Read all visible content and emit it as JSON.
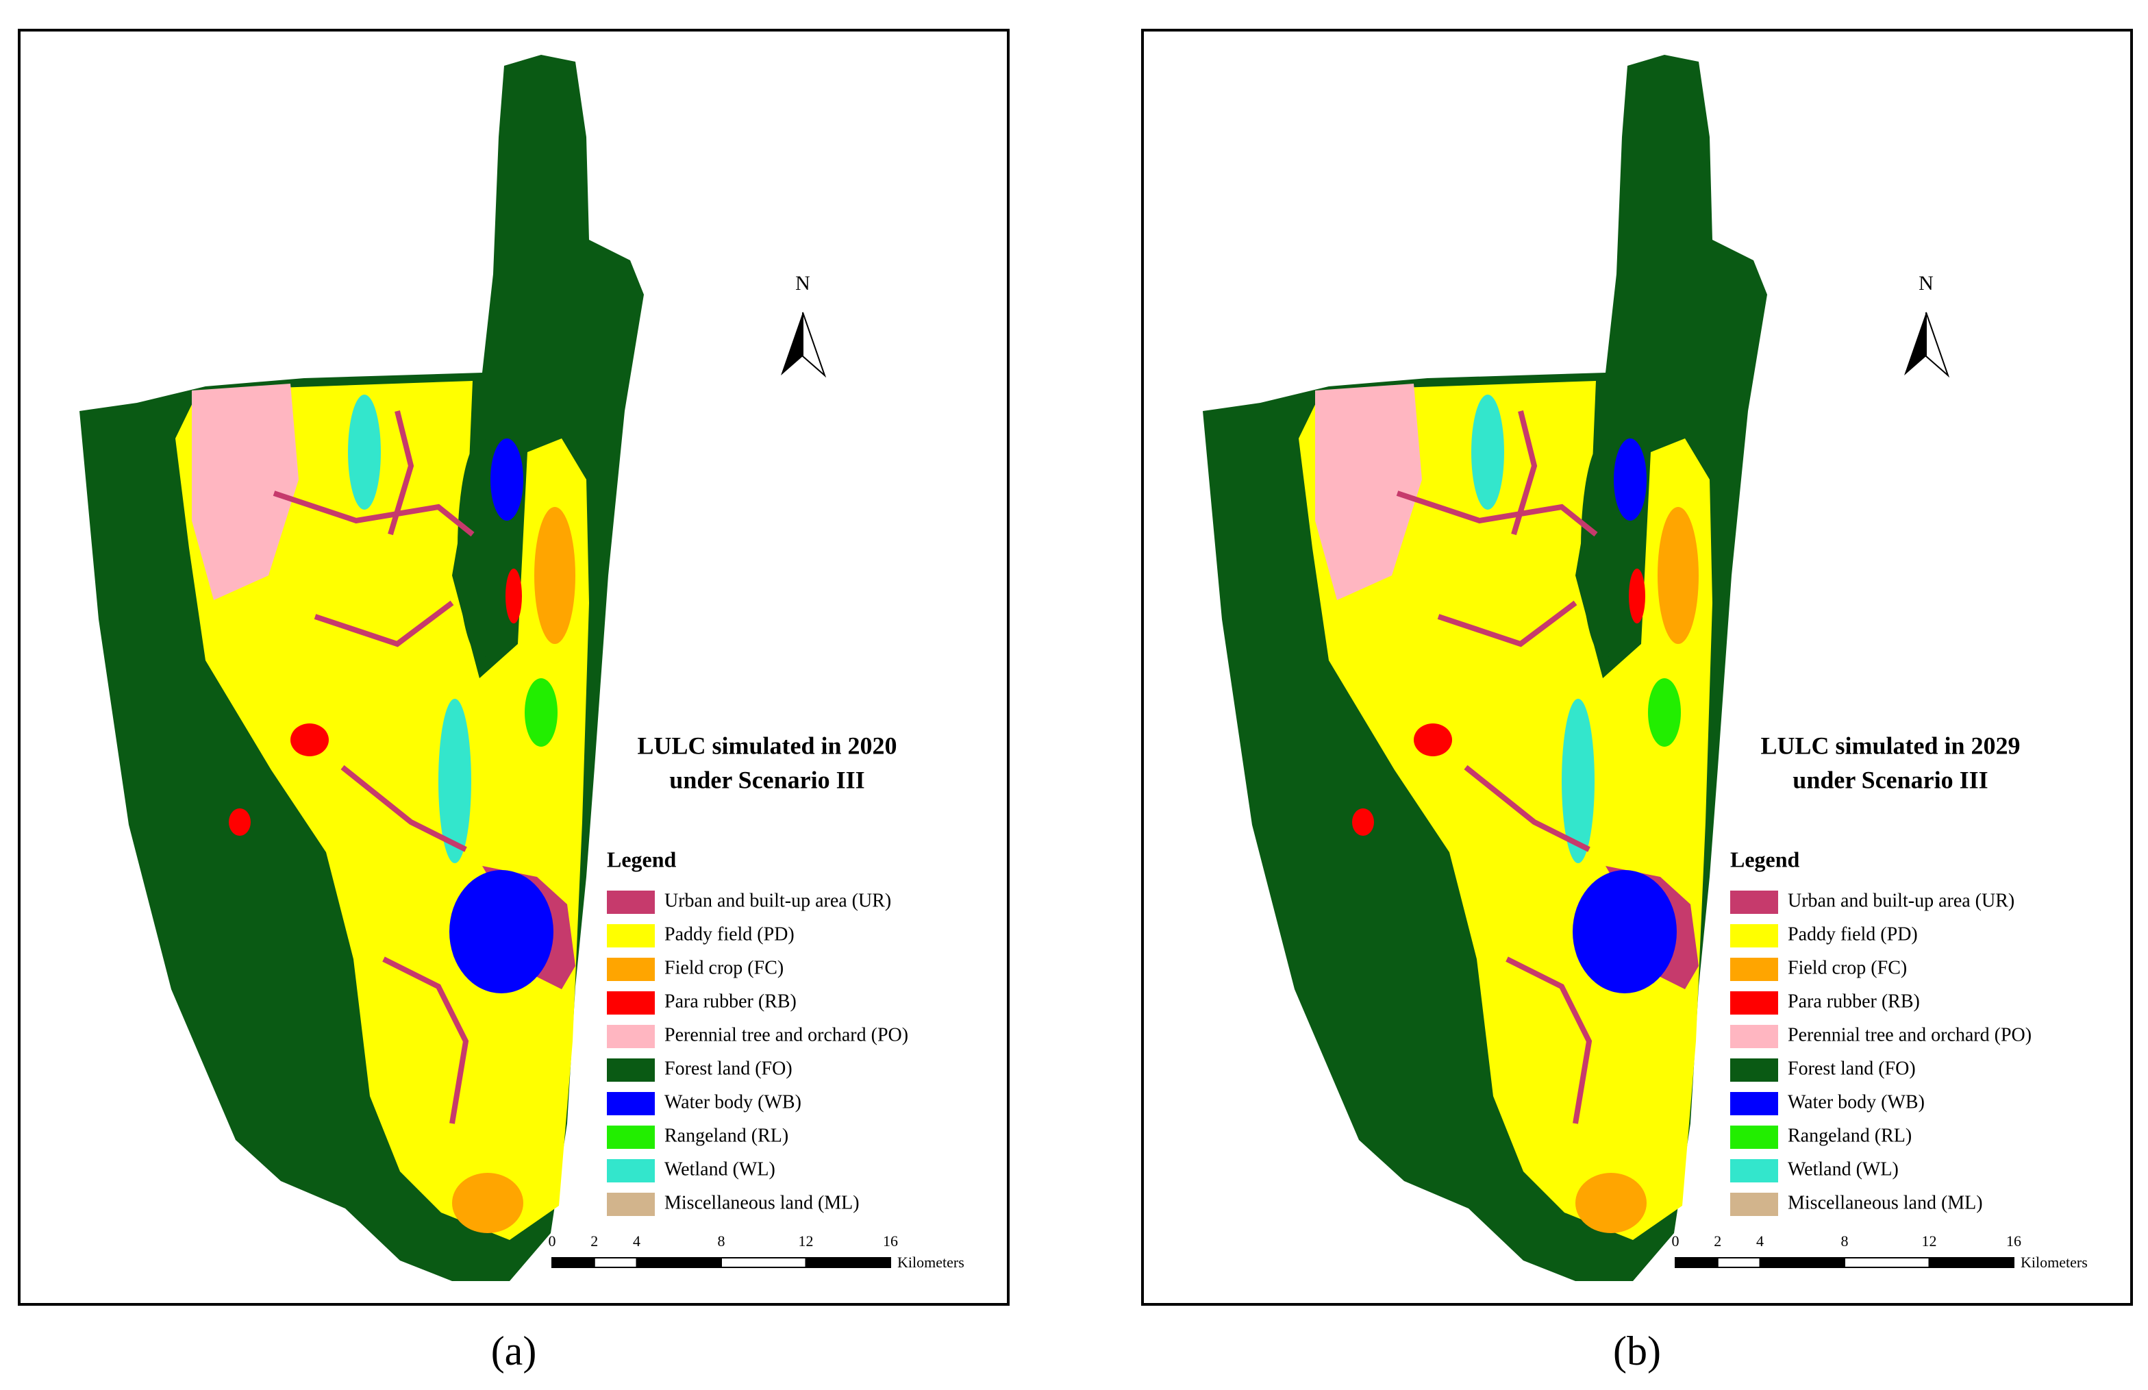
{
  "panels": [
    {
      "label": "(a)",
      "title": [
        "LULC simulated in 2020",
        "under Scenario III"
      ],
      "north": "N",
      "legend": {
        "title": "Legend",
        "items": [
          {
            "label": "Urban and built-up area (UR)",
            "color": "#c63a6c"
          },
          {
            "label": "Paddy field (PD)",
            "color": "#ffff00"
          },
          {
            "label": "Field crop (FC)",
            "color": "#ffa500"
          },
          {
            "label": "Para rubber (RB)",
            "color": "#ff0000"
          },
          {
            "label": "Perennial tree and orchard (PO)",
            "color": "#ffb6c1"
          },
          {
            "label": "Forest land (FO)",
            "color": "#0a5a14"
          },
          {
            "label": "Water body (WB)",
            "color": "#0000ff"
          },
          {
            "label": "Rangeland (RL)",
            "color": "#22ee00"
          },
          {
            "label": "Wetland (WL)",
            "color": "#33e6cc"
          },
          {
            "label": "Miscellaneous land (ML)",
            "color": "#d2b48c"
          }
        ]
      },
      "scale": {
        "ticks": [
          0,
          2,
          4,
          8,
          12,
          16
        ],
        "unit": "Kilometers"
      }
    },
    {
      "label": "(b)",
      "title": [
        "LULC simulated in 2029",
        "under Scenario III"
      ],
      "north": "N",
      "legend": {
        "title": "Legend",
        "items": [
          {
            "label": "Urban and built-up area (UR)",
            "color": "#c63a6c"
          },
          {
            "label": "Paddy field (PD)",
            "color": "#ffff00"
          },
          {
            "label": "Field crop (FC)",
            "color": "#ffa500"
          },
          {
            "label": "Para rubber (RB)",
            "color": "#ff0000"
          },
          {
            "label": "Perennial tree and orchard (PO)",
            "color": "#ffb6c1"
          },
          {
            "label": "Forest land (FO)",
            "color": "#0a5a14"
          },
          {
            "label": "Water body (WB)",
            "color": "#0000ff"
          },
          {
            "label": "Rangeland (RL)",
            "color": "#22ee00"
          },
          {
            "label": "Wetland (WL)",
            "color": "#33e6cc"
          },
          {
            "label": "Miscellaneous land (ML)",
            "color": "#d2b48c"
          }
        ]
      },
      "scale": {
        "ticks": [
          0,
          2,
          4,
          8,
          12,
          16
        ],
        "unit": "Kilometers"
      }
    }
  ]
}
